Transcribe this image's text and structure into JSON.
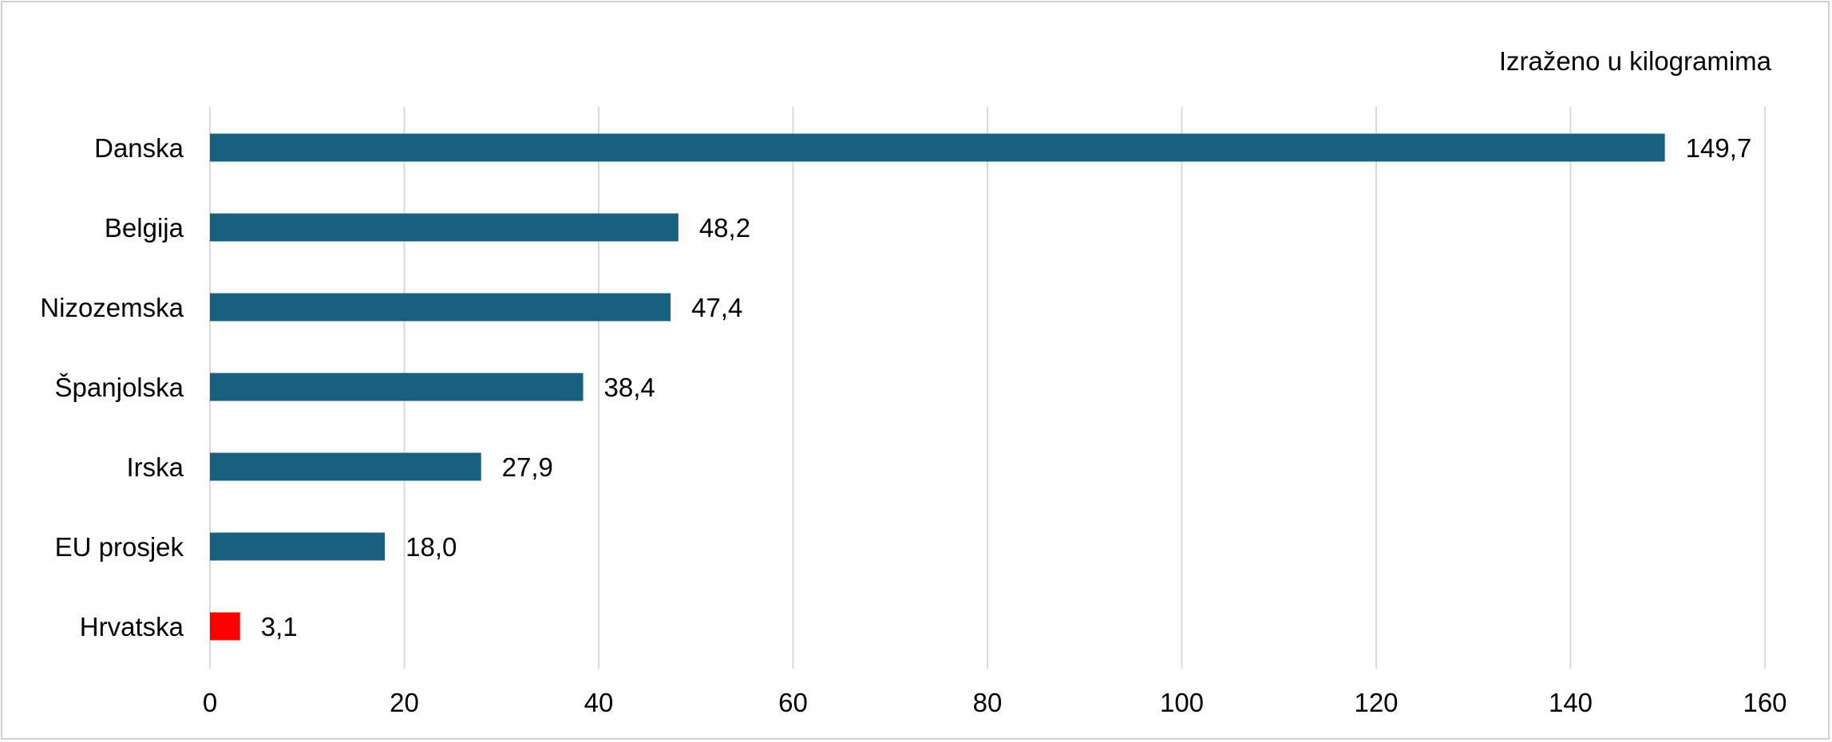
{
  "unit_note": "Izraženo u kilogramima",
  "chart_data": {
    "type": "bar",
    "orientation": "horizontal",
    "categories": [
      "Danska",
      "Belgija",
      "Nizozemska",
      "Španjolska",
      "Irska",
      "EU prosjek",
      "Hrvatska"
    ],
    "values": [
      149.7,
      48.2,
      47.4,
      38.4,
      27.9,
      18.0,
      3.1
    ],
    "value_labels": [
      "149,7",
      "48,2",
      "47,4",
      "38,4",
      "27,9",
      "18,0",
      "3,1"
    ],
    "bar_colors": [
      "#17607f",
      "#17607f",
      "#17607f",
      "#17607f",
      "#17607f",
      "#17607f",
      "#ff0000"
    ],
    "xlim": [
      0,
      160
    ],
    "x_ticks": [
      0,
      20,
      40,
      60,
      80,
      100,
      120,
      140,
      160
    ],
    "x_tick_labels": [
      "0",
      "20",
      "40",
      "60",
      "80",
      "100",
      "120",
      "140",
      "160"
    ],
    "grid": "vertical"
  }
}
